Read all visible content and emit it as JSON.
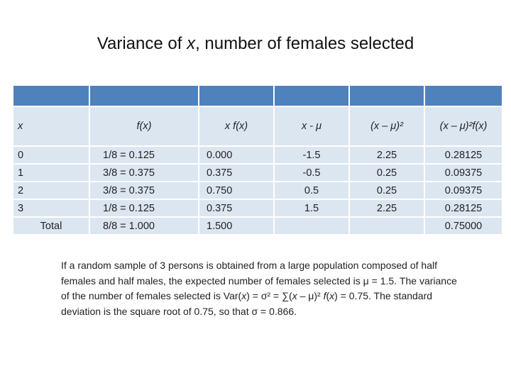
{
  "title": {
    "prefix": "Variance of ",
    "var": "x",
    "suffix": ", number of females selected"
  },
  "table": {
    "columns": [
      "x",
      "f(x)",
      "x f(x)",
      "x - μ",
      "(x – μ)²",
      "(x – μ)²f(x)"
    ],
    "rows": [
      [
        "0",
        "1/8 = 0.125",
        "0.000",
        "-1.5",
        "2.25",
        "0.28125"
      ],
      [
        "1",
        "3/8 = 0.375",
        "0.375",
        "-0.5",
        "0.25",
        "0.09375"
      ],
      [
        "2",
        "3/8 = 0.375",
        "0.750",
        "0.5",
        "0.25",
        "0.09375"
      ],
      [
        "3",
        "1/8 = 0.125",
        "0.375",
        "1.5",
        "2.25",
        "0.28125"
      ]
    ],
    "total": [
      "Total",
      "8/8 = 1.000",
      "1.500",
      "",
      "",
      "0.75000"
    ]
  },
  "note": {
    "p1": "If a random sample of 3 persons is obtained from a large population composed of half females and half males, the expected number of females selected is μ = 1.5.  The variance of the number of females selected is Var(",
    "v1": "x",
    "p2": ") = σ² = ∑(",
    "v2": "x",
    "p3": " – μ)² ",
    "v3": "f",
    "p4": "(",
    "v4": "x",
    "p5": ") = 0.75.  The standard deviation is the square root of 0.75, so that σ = 0.866."
  }
}
